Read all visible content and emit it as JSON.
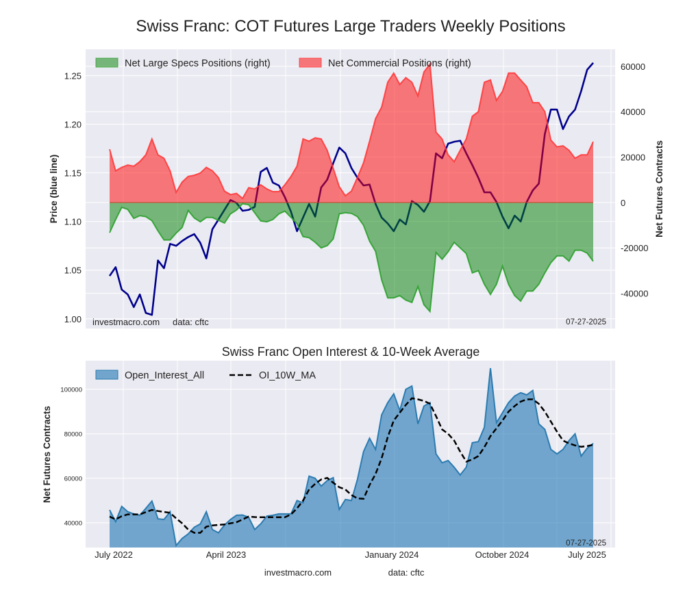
{
  "chart_data": [
    {
      "type": "line+area",
      "title": "Swiss Franc: COT Futures Large Traders Weekly Positions",
      "ylabel_left": "Price (blue line)",
      "ylabel_right": "Net Futures Contracts",
      "ylim_left": [
        0.99,
        1.277
      ],
      "ylim_right": [
        -55500,
        67500
      ],
      "left_ticks": [
        "1.00",
        "1.05",
        "1.10",
        "1.15",
        "1.20",
        "1.25"
      ],
      "left_tick_values": [
        1.0,
        1.05,
        1.1,
        1.15,
        1.2,
        1.25
      ],
      "right_ticks": [
        "-40000",
        "-20000",
        "0",
        "20000",
        "40000",
        "60000"
      ],
      "right_tick_values": [
        -40000,
        -20000,
        0,
        20000,
        40000,
        60000
      ],
      "grid": true,
      "legend_position": "top-left",
      "watermark": "investmacro.com",
      "source_note": "data: cftc",
      "date_note": "07-27-2025",
      "colors": {
        "price": "#00008b",
        "specs_fill": "#008000",
        "specs_line": "#2ca02c",
        "commercial_fill": "#ff0000",
        "commercial_line": "#ff3333",
        "background": "#eaeaf2"
      },
      "x": [
        "2022-06-21",
        "2022-07-05",
        "2022-07-19",
        "2022-08-02",
        "2022-08-16",
        "2022-08-30",
        "2022-09-13",
        "2022-09-27",
        "2022-10-11",
        "2022-10-25",
        "2022-11-08",
        "2022-11-22",
        "2022-12-06",
        "2022-12-20",
        "2023-01-03",
        "2023-01-17",
        "2023-01-31",
        "2023-02-14",
        "2023-02-28",
        "2023-03-14",
        "2023-03-28",
        "2023-04-11",
        "2023-04-25",
        "2023-05-09",
        "2023-05-23",
        "2023-06-06",
        "2023-06-20",
        "2023-07-04",
        "2023-07-18",
        "2023-08-01",
        "2023-08-15",
        "2023-08-29",
        "2023-09-12",
        "2023-09-26",
        "2023-10-10",
        "2023-10-24",
        "2023-11-07",
        "2023-11-21",
        "2023-12-05",
        "2023-12-19",
        "2024-01-02",
        "2024-01-16",
        "2024-01-30",
        "2024-02-13",
        "2024-02-27",
        "2024-03-12",
        "2024-03-26",
        "2024-04-09",
        "2024-04-23",
        "2024-05-07",
        "2024-05-21",
        "2024-06-04",
        "2024-06-18",
        "2024-07-02",
        "2024-07-16",
        "2024-07-30",
        "2024-08-13",
        "2024-08-27",
        "2024-09-10",
        "2024-09-24",
        "2024-10-08",
        "2024-10-22",
        "2024-11-05",
        "2024-11-19",
        "2024-12-03",
        "2024-12-17",
        "2024-12-31",
        "2025-01-14",
        "2025-01-28",
        "2025-02-11",
        "2025-02-25",
        "2025-03-11",
        "2025-03-25",
        "2025-04-08",
        "2025-04-22",
        "2025-05-06",
        "2025-05-20",
        "2025-06-03",
        "2025-06-17",
        "2025-07-01",
        "2025-07-15"
      ],
      "series": [
        {
          "name": "Net Large Specs Positions (right)",
          "axis": "right",
          "kind": "area",
          "values": [
            -13300,
            -7500,
            -2100,
            -3000,
            -7000,
            -5800,
            -6200,
            -8000,
            -12500,
            -16500,
            -16500,
            -13500,
            -11000,
            -3500,
            -6800,
            -8500,
            -6600,
            -6600,
            -7800,
            -9000,
            -5000,
            -3300,
            -500,
            -1000,
            -4500,
            -8100,
            -8500,
            -7500,
            -5000,
            -3800,
            -6500,
            -9300,
            -15000,
            -15500,
            -17500,
            -20000,
            -19000,
            -16000,
            -5000,
            -4500,
            -4800,
            -6200,
            -10000,
            -17000,
            -21500,
            -34000,
            -42000,
            -42000,
            -41000,
            -43000,
            -44000,
            -37000,
            -45000,
            -48000,
            -22000,
            -25000,
            -21700,
            -17500,
            -20000,
            -22500,
            -31000,
            -30000,
            -36000,
            -40500,
            -36000,
            -28000,
            -36000,
            -41000,
            -43400,
            -39000,
            -39000,
            -36000,
            -31000,
            -26500,
            -23500,
            -23500,
            -25800,
            -21000,
            -21000,
            -22300,
            -25900
          ]
        },
        {
          "name": "Net Commercial Positions (right)",
          "axis": "right",
          "kind": "area",
          "values": [
            23500,
            14000,
            15500,
            16500,
            16000,
            18000,
            21000,
            28000,
            21000,
            19500,
            14000,
            4500,
            9000,
            11500,
            12000,
            13000,
            15500,
            14000,
            11000,
            5000,
            3500,
            4000,
            1800,
            6500,
            6000,
            7800,
            6000,
            4800,
            4800,
            7800,
            11500,
            16000,
            28000,
            27000,
            28500,
            28000,
            23000,
            15000,
            7000,
            3000,
            5000,
            11000,
            17500,
            27000,
            37000,
            42000,
            53000,
            57000,
            52000,
            55000,
            53000,
            47000,
            57500,
            61000,
            31000,
            28000,
            21000,
            18000,
            23000,
            28000,
            38000,
            40000,
            53000,
            54000,
            45000,
            49000,
            57000,
            57000,
            54000,
            51000,
            44000,
            44000,
            40000,
            27500,
            24500,
            25000,
            23000,
            19500,
            21000,
            21000,
            26800
          ]
        },
        {
          "name": "Price",
          "axis": "left",
          "kind": "line",
          "values": [
            1.044,
            1.053,
            1.03,
            1.025,
            1.012,
            1.025,
            1.006,
            1.004,
            1.06,
            1.052,
            1.077,
            1.075,
            1.08,
            1.084,
            1.087,
            1.078,
            1.062,
            1.092,
            1.102,
            1.112,
            1.122,
            1.119,
            1.111,
            1.112,
            1.115,
            1.151,
            1.155,
            1.14,
            1.137,
            1.125,
            1.11,
            1.09,
            1.104,
            1.118,
            1.105,
            1.135,
            1.143,
            1.16,
            1.176,
            1.17,
            1.155,
            1.145,
            1.137,
            1.138,
            1.118,
            1.104,
            1.098,
            1.09,
            1.102,
            1.097,
            1.121,
            1.117,
            1.11,
            1.121,
            1.17,
            1.165,
            1.18,
            1.182,
            1.183,
            1.17,
            1.158,
            1.145,
            1.13,
            1.13,
            1.12,
            1.105,
            1.093,
            1.106,
            1.1,
            1.12,
            1.132,
            1.139,
            1.19,
            1.215,
            1.215,
            1.195,
            1.208,
            1.215,
            1.234,
            1.256,
            1.263
          ]
        }
      ]
    },
    {
      "type": "area+line",
      "title": "Swiss Franc Open Interest & 10-Week Average",
      "ylabel": "Net Futures Contracts",
      "ylim": [
        28900,
        112900
      ],
      "y_ticks": [
        "40000",
        "60000",
        "80000",
        "100000"
      ],
      "y_tick_values": [
        40000,
        60000,
        80000,
        100000
      ],
      "x_tick_labels": [
        "July 2022",
        "April 2023",
        "January 2024",
        "October 2024",
        "July 2025"
      ],
      "grid": true,
      "legend_position": "top-left",
      "date_note": "07-27-2025",
      "colors": {
        "oi_fill": "#1f77b4",
        "oi_line": "#2b7bb0",
        "ma_line": "#000000"
      },
      "x": "same as chart 1",
      "series": [
        {
          "name": "Open_Interest_All",
          "kind": "area",
          "values": [
            45800,
            40500,
            47400,
            45000,
            44000,
            43400,
            46500,
            49800,
            41800,
            41500,
            45000,
            29800,
            33000,
            35000,
            38000,
            39500,
            45000,
            37000,
            35500,
            39000,
            41500,
            43400,
            43500,
            42500,
            37000,
            39500,
            43000,
            43400,
            44000,
            44000,
            44000,
            50000,
            49000,
            61000,
            60000,
            56500,
            59000,
            60300,
            46000,
            50500,
            50000,
            59500,
            72000,
            78000,
            73000,
            88500,
            94000,
            98000,
            90500,
            100000,
            101500,
            84500,
            92500,
            94000,
            71000,
            67000,
            68000,
            65000,
            61500,
            65000,
            76000,
            76500,
            83000,
            109500,
            85000,
            89500,
            94000,
            97000,
            98500,
            97500,
            99500,
            84500,
            82000,
            73000,
            71000,
            73000,
            77000,
            80000,
            70000,
            73500,
            75700
          ]
        },
        {
          "name": "OI_10W_MA",
          "kind": "dashed-line",
          "values": [
            42800,
            41500,
            43000,
            43800,
            43800,
            43800,
            44800,
            45800,
            45300,
            44900,
            44500,
            42000,
            39800,
            37000,
            35500,
            35500,
            38300,
            38800,
            39100,
            39300,
            39800,
            40300,
            41500,
            42800,
            42600,
            42500,
            42500,
            42500,
            42500,
            42500,
            43800,
            46500,
            50000,
            55000,
            57500,
            59500,
            60200,
            58000,
            56000,
            55000,
            52500,
            51000,
            50800,
            57000,
            62000,
            69000,
            78500,
            86000,
            89500,
            93000,
            96000,
            95500,
            94800,
            93500,
            88000,
            82000,
            80000,
            77000,
            72000,
            67500,
            68500,
            70000,
            74000,
            79000,
            82500,
            86000,
            90000,
            92500,
            94500,
            95500,
            95500,
            93500,
            90000,
            85500,
            81000,
            77000,
            75700,
            74800,
            74200,
            74500,
            75100
          ]
        }
      ]
    }
  ],
  "footer": {
    "site": "investmacro.com",
    "source": "data: cftc"
  }
}
